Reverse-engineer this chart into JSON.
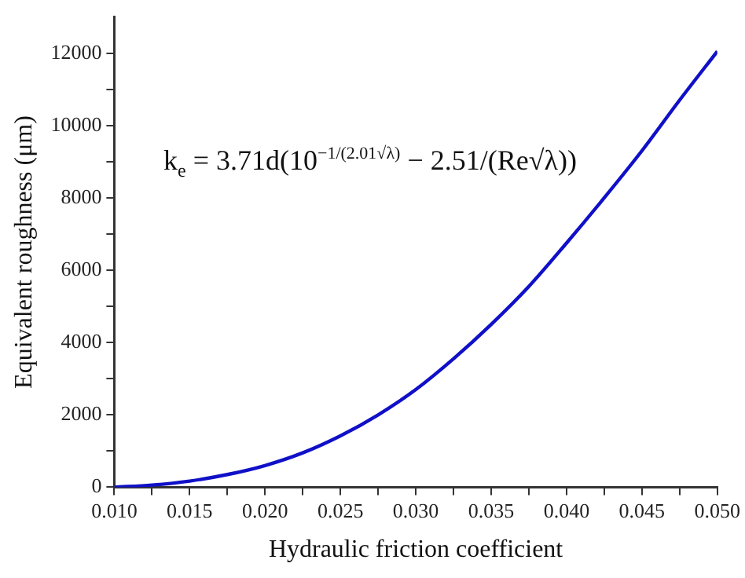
{
  "chart_data": {
    "type": "line",
    "xlabel": "Hydraulic friction coefficient",
    "ylabel": "Equivalent roughness (μm)",
    "annotations": [
      "k$_{e}$ = 3.71d(10$^{−1/(2.01√λ)}$ − 2.51/(Re√λ))"
    ],
    "x": [
      0.01,
      0.0125,
      0.015,
      0.0175,
      0.02,
      0.0225,
      0.025,
      0.0275,
      0.03,
      0.0325,
      0.035,
      0.0375,
      0.04,
      0.0425,
      0.045,
      0.0475,
      0.05
    ],
    "series": [
      {
        "color": "#1010c8",
        "values": [
          0,
          60,
          170,
          350,
          600,
          950,
          1420,
          2000,
          2700,
          3550,
          4500,
          5550,
          6750,
          8000,
          9300,
          10700,
          12050
        ]
      }
    ],
    "xlim": [
      0.01,
      0.05
    ],
    "ylim": [
      0,
      13000
    ],
    "xticks": [
      {
        "value": 0.01,
        "label": "0.010"
      },
      {
        "value": 0.0125,
        "label": null
      },
      {
        "value": 0.015,
        "label": "0.015"
      },
      {
        "value": 0.0175,
        "label": null
      },
      {
        "value": 0.02,
        "label": "0.020"
      },
      {
        "value": 0.0225,
        "label": null
      },
      {
        "value": 0.025,
        "label": "0.025"
      },
      {
        "value": 0.0275,
        "label": null
      },
      {
        "value": 0.03,
        "label": "0.030"
      },
      {
        "value": 0.0325,
        "label": null
      },
      {
        "value": 0.035,
        "label": "0.035"
      },
      {
        "value": 0.0375,
        "label": null
      },
      {
        "value": 0.04,
        "label": "0.040"
      },
      {
        "value": 0.0425,
        "label": null
      },
      {
        "value": 0.045,
        "label": "0.045"
      },
      {
        "value": 0.0475,
        "label": null
      },
      {
        "value": 0.05,
        "label": "0.050"
      }
    ],
    "yticks": [
      0,
      {
        "value": 1000,
        "label": null
      },
      2000,
      {
        "value": 3000,
        "label": null
      },
      4000,
      {
        "value": 5000,
        "label": null
      },
      6000,
      {
        "value": 7000,
        "label": null
      },
      8000,
      {
        "value": 9000,
        "label": null
      },
      10000,
      {
        "value": 11000,
        "label": null
      },
      12000
    ],
    "grid": false,
    "legend": false,
    "marker": "none",
    "line_style": "solid"
  }
}
